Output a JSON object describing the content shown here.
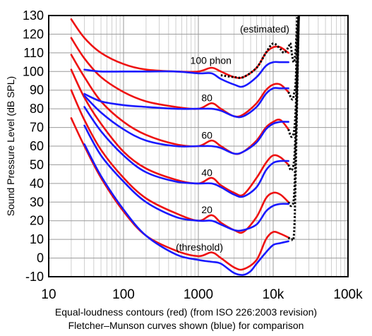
{
  "chart_data": {
    "type": "line",
    "ylabel": "Sound Pressure Level (dB SPL)",
    "xscale": "log",
    "xlim": [
      10,
      100000
    ],
    "ylim": [
      -10,
      130
    ],
    "grid": true,
    "x_ticks": [
      {
        "value": 10,
        "label": "10"
      },
      {
        "value": 100,
        "label": "100"
      },
      {
        "value": 1000,
        "label": "1000"
      },
      {
        "value": 10000,
        "label": "10k"
      },
      {
        "value": 100000,
        "label": "100k"
      }
    ],
    "y_ticks": [
      -10,
      0,
      10,
      20,
      30,
      40,
      50,
      60,
      70,
      80,
      90,
      100,
      110,
      120,
      130
    ],
    "annotations": [
      {
        "text": "(estimated)",
        "x": 3600,
        "y": 121
      },
      {
        "text": "100 phon",
        "x": 780,
        "y": 104
      },
      {
        "text": "80",
        "x": 1100,
        "y": 84
      },
      {
        "text": "60",
        "x": 1100,
        "y": 64
      },
      {
        "text": "40",
        "x": 1100,
        "y": 44
      },
      {
        "text": "20",
        "x": 1100,
        "y": 24
      },
      {
        "text": "(threshold)",
        "x": 500,
        "y": 4
      }
    ],
    "series": [
      {
        "group": "iso",
        "color": "#ee1111",
        "style": "solid",
        "points": [
          [
            20,
            75
          ],
          [
            30,
            60
          ],
          [
            50,
            43
          ],
          [
            100,
            25
          ],
          [
            200,
            12
          ],
          [
            500,
            4
          ],
          [
            1000,
            1
          ],
          [
            1500,
            3
          ],
          [
            2000,
            0
          ],
          [
            3000,
            -5
          ],
          [
            4000,
            -6
          ],
          [
            6000,
            -1
          ],
          [
            8000,
            10
          ],
          [
            10000,
            14
          ],
          [
            12500,
            13
          ],
          [
            16000,
            11
          ]
        ]
      },
      {
        "group": "iso",
        "color": "#ee1111",
        "style": "solid",
        "points": [
          [
            20,
            90
          ],
          [
            30,
            74
          ],
          [
            50,
            58
          ],
          [
            100,
            43
          ],
          [
            200,
            32
          ],
          [
            500,
            24
          ],
          [
            1000,
            20
          ],
          [
            1500,
            23
          ],
          [
            2000,
            19
          ],
          [
            3000,
            15
          ],
          [
            4000,
            14
          ],
          [
            6000,
            22
          ],
          [
            8000,
            32
          ],
          [
            10000,
            35
          ],
          [
            12500,
            34
          ],
          [
            16000,
            30
          ]
        ]
      },
      {
        "group": "iso",
        "color": "#ee1111",
        "style": "solid",
        "points": [
          [
            20,
            101
          ],
          [
            30,
            86
          ],
          [
            50,
            72
          ],
          [
            100,
            57
          ],
          [
            200,
            48
          ],
          [
            500,
            42
          ],
          [
            1000,
            40
          ],
          [
            1500,
            43
          ],
          [
            2000,
            39
          ],
          [
            3000,
            35
          ],
          [
            4000,
            34
          ],
          [
            6000,
            43
          ],
          [
            8000,
            51
          ],
          [
            10000,
            55
          ],
          [
            12500,
            54
          ],
          [
            16000,
            50
          ]
        ]
      },
      {
        "group": "iso",
        "color": "#ee1111",
        "style": "solid",
        "points": [
          [
            20,
            109
          ],
          [
            30,
            97
          ],
          [
            50,
            84
          ],
          [
            100,
            73
          ],
          [
            200,
            66
          ],
          [
            500,
            61
          ],
          [
            1000,
            60
          ],
          [
            1500,
            63
          ],
          [
            2000,
            60
          ],
          [
            3000,
            56
          ],
          [
            4000,
            57
          ],
          [
            6000,
            63
          ],
          [
            8000,
            70
          ],
          [
            10000,
            73
          ],
          [
            12500,
            74
          ],
          [
            16000,
            69
          ]
        ]
      },
      {
        "group": "iso",
        "color": "#ee1111",
        "style": "solid",
        "points": [
          [
            20,
            118
          ],
          [
            30,
            107
          ],
          [
            50,
            97
          ],
          [
            100,
            89
          ],
          [
            200,
            84
          ],
          [
            500,
            81
          ],
          [
            1000,
            80
          ],
          [
            1500,
            83
          ],
          [
            2000,
            80
          ],
          [
            3000,
            76
          ],
          [
            4000,
            77
          ],
          [
            6000,
            83
          ],
          [
            8000,
            90
          ],
          [
            10000,
            93
          ],
          [
            12500,
            93
          ],
          [
            16000,
            89
          ]
        ]
      },
      {
        "group": "iso",
        "color": "#ee1111",
        "style": "solid",
        "points": [
          [
            20,
            128
          ],
          [
            30,
            118
          ],
          [
            50,
            110
          ],
          [
            100,
            104
          ],
          [
            200,
            101
          ],
          [
            500,
            100
          ],
          [
            1000,
            100
          ],
          [
            1500,
            102
          ],
          [
            2000,
            100
          ],
          [
            3000,
            97
          ],
          [
            4000,
            97
          ],
          [
            6000,
            102
          ],
          [
            8000,
            110
          ],
          [
            10000,
            113
          ],
          [
            12500,
            113
          ],
          [
            16000,
            110
          ]
        ]
      },
      {
        "group": "iso",
        "color": "#000000",
        "style": "dotted",
        "points": [
          [
            2000,
            98
          ],
          [
            3000,
            97
          ],
          [
            4000,
            97
          ],
          [
            6000,
            102
          ],
          [
            8000,
            110
          ],
          [
            10000,
            115
          ],
          [
            12500,
            112
          ],
          [
            14000,
            110
          ],
          [
            16000,
            113
          ],
          [
            17000,
            115
          ],
          [
            18000,
            108
          ],
          [
            19000,
            105
          ],
          [
            20000,
            112
          ],
          [
            21000,
            130
          ]
        ]
      },
      {
        "group": "iso",
        "color": "#000000",
        "style": "dotted",
        "points": [
          [
            16000,
            89
          ],
          [
            18000,
            85
          ],
          [
            19000,
            88
          ],
          [
            20000,
            95
          ],
          [
            21000,
            120
          ],
          [
            22000,
            130
          ]
        ]
      },
      {
        "group": "iso",
        "color": "#000000",
        "style": "dotted",
        "points": [
          [
            16000,
            69
          ],
          [
            17500,
            65
          ],
          [
            19000,
            68
          ],
          [
            20000,
            80
          ],
          [
            21000,
            105
          ],
          [
            22000,
            130
          ]
        ]
      },
      {
        "group": "iso",
        "color": "#000000",
        "style": "dotted",
        "points": [
          [
            16000,
            50
          ],
          [
            17500,
            47
          ],
          [
            19000,
            52
          ],
          [
            20000,
            70
          ],
          [
            21000,
            100
          ],
          [
            22000,
            130
          ]
        ]
      },
      {
        "group": "iso",
        "color": "#000000",
        "style": "dotted",
        "points": [
          [
            16000,
            30
          ],
          [
            17500,
            28
          ],
          [
            19000,
            33
          ],
          [
            20000,
            60
          ],
          [
            21000,
            95
          ],
          [
            22000,
            130
          ]
        ]
      },
      {
        "group": "iso",
        "color": "#000000",
        "style": "dotted",
        "points": [
          [
            16000,
            11
          ],
          [
            17500,
            10
          ],
          [
            19000,
            13
          ],
          [
            20000,
            45
          ],
          [
            21000,
            90
          ],
          [
            22000,
            130
          ]
        ]
      },
      {
        "group": "fletcher-munson",
        "color": "#1a1aff",
        "style": "solid",
        "points": [
          [
            30,
            61
          ],
          [
            50,
            44
          ],
          [
            100,
            26
          ],
          [
            200,
            12
          ],
          [
            500,
            2
          ],
          [
            1000,
            -1
          ],
          [
            1500,
            -2
          ],
          [
            2000,
            -3
          ],
          [
            3000,
            -8
          ],
          [
            4000,
            -9
          ],
          [
            5000,
            -7
          ],
          [
            6000,
            -3
          ],
          [
            8000,
            3
          ],
          [
            10000,
            7
          ],
          [
            12500,
            8
          ],
          [
            16000,
            9
          ]
        ]
      },
      {
        "group": "fletcher-munson",
        "color": "#1a1aff",
        "style": "solid",
        "points": [
          [
            30,
            71
          ],
          [
            50,
            55
          ],
          [
            100,
            41
          ],
          [
            200,
            30
          ],
          [
            500,
            22
          ],
          [
            1000,
            20
          ],
          [
            1500,
            20
          ],
          [
            2000,
            18
          ],
          [
            3000,
            15
          ],
          [
            4000,
            15
          ],
          [
            6000,
            18
          ],
          [
            8000,
            25
          ],
          [
            10000,
            28
          ],
          [
            12500,
            29
          ],
          [
            16000,
            29
          ]
        ]
      },
      {
        "group": "fletcher-munson",
        "color": "#1a1aff",
        "style": "solid",
        "points": [
          [
            30,
            81
          ],
          [
            50,
            68
          ],
          [
            100,
            55
          ],
          [
            200,
            46
          ],
          [
            500,
            41
          ],
          [
            1000,
            40
          ],
          [
            1500,
            40
          ],
          [
            2000,
            38
          ],
          [
            3000,
            34
          ],
          [
            4000,
            33
          ],
          [
            6000,
            38
          ],
          [
            8000,
            47
          ],
          [
            10000,
            51
          ],
          [
            12500,
            52
          ],
          [
            16000,
            52
          ]
        ]
      },
      {
        "group": "fletcher-munson",
        "color": "#1a1aff",
        "style": "solid",
        "points": [
          [
            30,
            87
          ],
          [
            50,
            78
          ],
          [
            100,
            69
          ],
          [
            200,
            63
          ],
          [
            500,
            60
          ],
          [
            1000,
            60
          ],
          [
            1500,
            60
          ],
          [
            2000,
            59
          ],
          [
            3000,
            56
          ],
          [
            4000,
            57
          ],
          [
            6000,
            62
          ],
          [
            8000,
            69
          ],
          [
            10000,
            72
          ],
          [
            12500,
            73
          ],
          [
            16000,
            73
          ]
        ]
      },
      {
        "group": "fletcher-munson",
        "color": "#1a1aff",
        "style": "solid",
        "points": [
          [
            30,
            88
          ],
          [
            50,
            84
          ],
          [
            100,
            82
          ],
          [
            200,
            81
          ],
          [
            500,
            80
          ],
          [
            1000,
            80
          ],
          [
            1500,
            80
          ],
          [
            2000,
            79
          ],
          [
            3000,
            76
          ],
          [
            4000,
            76
          ],
          [
            6000,
            81
          ],
          [
            8000,
            88
          ],
          [
            10000,
            91
          ],
          [
            12500,
            91
          ],
          [
            16000,
            91
          ]
        ]
      },
      {
        "group": "fletcher-munson",
        "color": "#1a1aff",
        "style": "solid",
        "points": [
          [
            30,
            101
          ],
          [
            50,
            100
          ],
          [
            100,
            100
          ],
          [
            200,
            100
          ],
          [
            500,
            100
          ],
          [
            1000,
            99
          ],
          [
            1500,
            99
          ],
          [
            2000,
            96
          ],
          [
            3000,
            93
          ],
          [
            4000,
            92
          ],
          [
            6000,
            97
          ],
          [
            8000,
            103
          ],
          [
            10000,
            105
          ],
          [
            12500,
            105
          ],
          [
            16000,
            105
          ]
        ]
      }
    ]
  },
  "captions": {
    "line1": "Equal-loudness contours (red) (from ISO 226:2003 revision)",
    "line2": "Fletcher–Munson curves shown (blue) for comparison"
  }
}
